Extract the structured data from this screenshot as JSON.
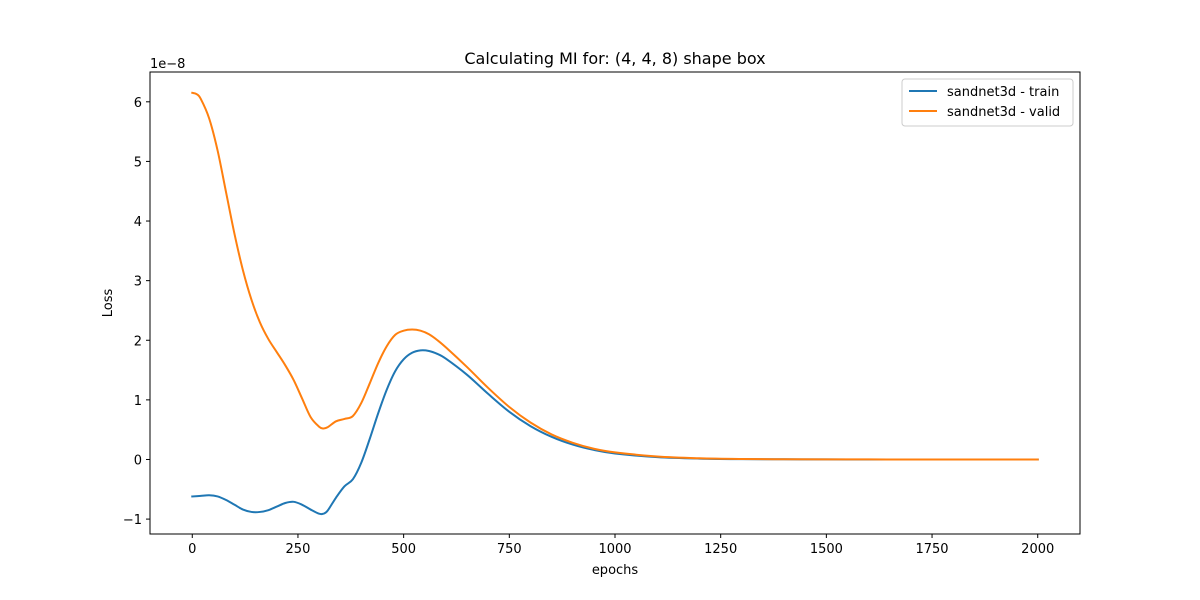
{
  "chart_data": {
    "type": "line",
    "title": "Calculating MI for: (4, 4, 8) shape box",
    "xlabel": "epochs",
    "ylabel": "Loss",
    "offset_text": "1e−8",
    "xlim": [
      -100,
      2100
    ],
    "ylim": [
      -1.25,
      6.5
    ],
    "xticks": [
      0,
      250,
      500,
      750,
      1000,
      1250,
      1500,
      1750,
      2000
    ],
    "xtick_labels": [
      "0",
      "250",
      "500",
      "750",
      "1000",
      "1250",
      "1500",
      "1750",
      "2000"
    ],
    "yticks": [
      -1,
      0,
      1,
      2,
      3,
      4,
      5,
      6
    ],
    "ytick_labels": [
      "−1",
      "0",
      "1",
      "2",
      "3",
      "4",
      "5",
      "6"
    ],
    "grid": false,
    "legend_position": "top-right",
    "series": [
      {
        "name": "sandnet3d - train",
        "color": "#1f77b4",
        "x": [
          0,
          20,
          40,
          60,
          80,
          100,
          120,
          140,
          160,
          180,
          200,
          220,
          240,
          260,
          280,
          300,
          310,
          320,
          340,
          360,
          380,
          400,
          420,
          440,
          460,
          480,
          500,
          520,
          540,
          560,
          580,
          600,
          650,
          700,
          750,
          800,
          850,
          900,
          950,
          1000,
          1100,
          1200,
          1300,
          1400,
          1500,
          1600,
          1700,
          1800,
          1900,
          2000
        ],
        "y": [
          -0.62,
          -0.61,
          -0.6,
          -0.62,
          -0.68,
          -0.76,
          -0.84,
          -0.88,
          -0.88,
          -0.85,
          -0.79,
          -0.73,
          -0.71,
          -0.76,
          -0.84,
          -0.91,
          -0.91,
          -0.86,
          -0.64,
          -0.45,
          -0.33,
          -0.05,
          0.35,
          0.78,
          1.17,
          1.48,
          1.68,
          1.79,
          1.83,
          1.82,
          1.77,
          1.69,
          1.42,
          1.1,
          0.8,
          0.56,
          0.38,
          0.25,
          0.16,
          0.1,
          0.04,
          0.015,
          0.006,
          0.003,
          0.001,
          0.0,
          0.0,
          0.0,
          0.0,
          0.0
        ]
      },
      {
        "name": "sandnet3d - valid",
        "color": "#ff7f0e",
        "x": [
          0,
          10,
          20,
          40,
          60,
          80,
          100,
          120,
          140,
          160,
          180,
          200,
          220,
          240,
          260,
          280,
          300,
          310,
          320,
          340,
          360,
          380,
          400,
          420,
          440,
          460,
          480,
          500,
          520,
          540,
          560,
          580,
          600,
          650,
          700,
          750,
          800,
          850,
          900,
          950,
          1000,
          1100,
          1200,
          1300,
          1400,
          1500,
          1600,
          1700,
          1800,
          1900,
          2000
        ],
        "y": [
          6.15,
          6.13,
          6.05,
          5.72,
          5.18,
          4.48,
          3.78,
          3.17,
          2.68,
          2.3,
          2.02,
          1.8,
          1.58,
          1.33,
          1.02,
          0.71,
          0.55,
          0.52,
          0.54,
          0.64,
          0.68,
          0.73,
          0.95,
          1.28,
          1.62,
          1.9,
          2.09,
          2.16,
          2.18,
          2.16,
          2.1,
          2.0,
          1.88,
          1.55,
          1.2,
          0.88,
          0.62,
          0.42,
          0.28,
          0.18,
          0.12,
          0.05,
          0.02,
          0.008,
          0.004,
          0.002,
          0.001,
          0.0,
          0.0,
          0.0,
          0.0
        ]
      }
    ]
  }
}
